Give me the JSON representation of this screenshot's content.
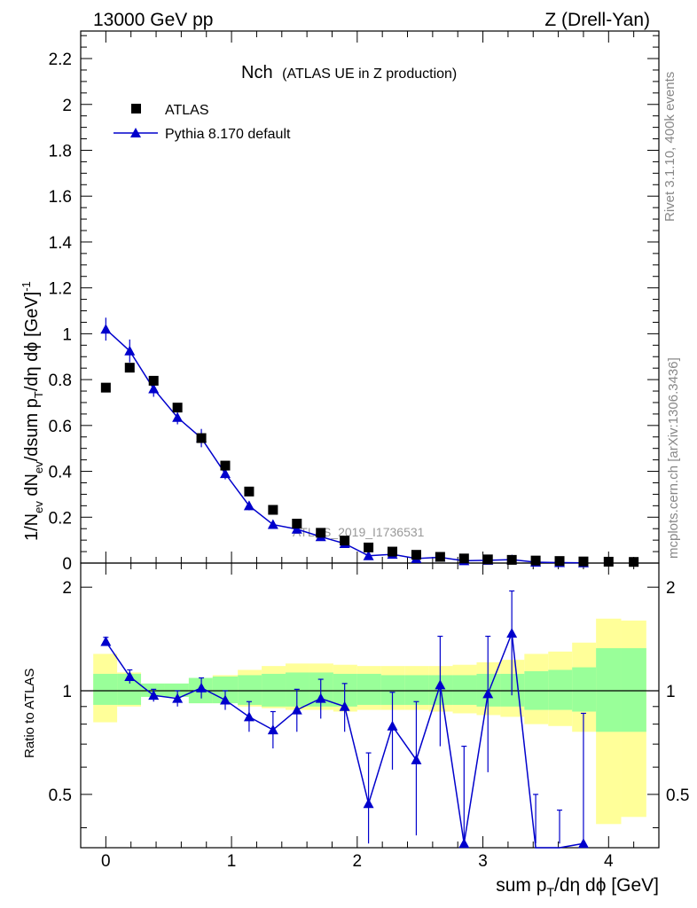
{
  "header": {
    "energy_label": "13000 GeV pp",
    "process_label": "Z (Drell-Yan)"
  },
  "side_labels": {
    "rivet": "Rivet 3.1.10,  400k events",
    "mcplots": "mcplots.cern.ch [arXiv:1306.3436]"
  },
  "chart_data": {
    "type": "scatter",
    "title_main": "Nch",
    "title_sub": "(ATLAS UE in Z production)",
    "watermark": "ATLAS_2019_I1736531",
    "ylabel": {
      "part1": "1/N",
      "sub1": "ev",
      "part2": " dN",
      "sub2": "ev",
      "part3": "/dsum p",
      "sub3": "T",
      "part4": "/dη dϕ  [GeV]",
      "sup": "-1"
    },
    "xlabel": {
      "part1": "sum p",
      "sub": "T",
      "part2": "/dη dϕ [GeV]"
    },
    "ratio_ylabel": "Ratio to ATLAS",
    "xlim": [
      -0.2,
      4.4
    ],
    "ylim_main": [
      0,
      2.32
    ],
    "ylim_ratio": [
      0.35,
      2.35
    ],
    "ratio_scale": "log",
    "x_ticks": [
      0,
      1,
      2,
      3,
      4
    ],
    "x_tick_labels": [
      "0",
      "1",
      "2",
      "3",
      "4"
    ],
    "y_ticks_main": [
      0,
      0.2,
      0.4,
      0.6,
      0.8,
      1,
      1.2,
      1.4,
      1.6,
      1.8,
      2,
      2.2
    ],
    "y_tick_labels_main": [
      "0",
      "0.2",
      "0.4",
      "0.6",
      "0.8",
      "1",
      "1.2",
      "1.4",
      "1.6",
      "1.8",
      "2",
      "2.2"
    ],
    "y_ticks_ratio": [
      0.5,
      1,
      2
    ],
    "y_tick_labels_ratio": [
      "0.5",
      "1",
      "2"
    ],
    "legend_position": "top-left",
    "series": [
      {
        "name": "ATLAS",
        "marker": "square",
        "color": "#000000",
        "x": [
          0,
          0.19,
          0.38,
          0.57,
          0.76,
          0.95,
          1.14,
          1.33,
          1.52,
          1.71,
          1.9,
          2.09,
          2.28,
          2.47,
          2.66,
          2.85,
          3.04,
          3.23,
          3.42,
          3.61,
          3.8,
          4.0,
          4.2
        ],
        "y": [
          0.765,
          0.852,
          0.795,
          0.678,
          0.545,
          0.425,
          0.312,
          0.232,
          0.172,
          0.132,
          0.098,
          0.068,
          0.05,
          0.036,
          0.027,
          0.02,
          0.016,
          0.014,
          0.011,
          0.009,
          0.007,
          0.006,
          0.005
        ]
      },
      {
        "name": "Pythia 8.170 default",
        "marker": "triangle",
        "color": "#0000cc",
        "x": [
          0,
          0.19,
          0.38,
          0.57,
          0.76,
          0.95,
          1.14,
          1.33,
          1.52,
          1.71,
          1.9,
          2.09,
          2.28,
          2.47,
          2.66,
          2.85,
          3.04,
          3.23,
          3.42,
          3.61,
          3.8
        ],
        "y": [
          1.02,
          0.925,
          0.76,
          0.635,
          0.545,
          0.39,
          0.25,
          0.168,
          0.148,
          0.115,
          0.085,
          0.032,
          0.038,
          0.02,
          0.025,
          0.01,
          0.012,
          0.015,
          0.004,
          0.002,
          0.001
        ],
        "err": [
          0.05,
          0.05,
          0.035,
          0.03,
          0.04,
          0.025,
          0.02,
          0.015,
          0.015,
          0.012,
          0.01,
          0.01,
          0.01,
          0.007,
          0.01,
          0.006,
          0.008,
          0.01,
          0.005,
          0.003,
          0.003
        ]
      }
    ],
    "ratio": {
      "band_edges": [
        -0.1,
        0.09,
        0.28,
        0.47,
        0.66,
        0.85,
        1.05,
        1.24,
        1.43,
        1.62,
        1.81,
        2.0,
        2.19,
        2.38,
        2.57,
        2.76,
        2.95,
        3.14,
        3.33,
        3.52,
        3.71,
        3.9,
        4.1,
        4.3
      ],
      "inner_band": [
        [
          0.91,
          1.12
        ],
        [
          0.91,
          1.12
        ],
        [
          0.96,
          1.05
        ],
        [
          0.96,
          1.05
        ],
        [
          0.92,
          1.09
        ],
        [
          0.92,
          1.1
        ],
        [
          0.91,
          1.11
        ],
        [
          0.9,
          1.12
        ],
        [
          0.9,
          1.13
        ],
        [
          0.9,
          1.13
        ],
        [
          0.9,
          1.12
        ],
        [
          0.91,
          1.12
        ],
        [
          0.91,
          1.11
        ],
        [
          0.91,
          1.11
        ],
        [
          0.91,
          1.11
        ],
        [
          0.91,
          1.11
        ],
        [
          0.9,
          1.12
        ],
        [
          0.9,
          1.12
        ],
        [
          0.88,
          1.14
        ],
        [
          0.88,
          1.15
        ],
        [
          0.87,
          1.17
        ],
        [
          0.76,
          1.33
        ],
        [
          0.76,
          1.33
        ]
      ],
      "outer_band": [
        [
          0.81,
          1.28
        ],
        [
          0.9,
          1.13
        ],
        [
          0.97,
          1.04
        ],
        [
          0.97,
          1.04
        ],
        [
          0.92,
          1.09
        ],
        [
          0.92,
          1.11
        ],
        [
          0.9,
          1.15
        ],
        [
          0.89,
          1.18
        ],
        [
          0.88,
          1.2
        ],
        [
          0.88,
          1.2
        ],
        [
          0.87,
          1.19
        ],
        [
          0.88,
          1.18
        ],
        [
          0.88,
          1.18
        ],
        [
          0.88,
          1.18
        ],
        [
          0.87,
          1.18
        ],
        [
          0.86,
          1.19
        ],
        [
          0.85,
          1.21
        ],
        [
          0.84,
          1.23
        ],
        [
          0.8,
          1.28
        ],
        [
          0.79,
          1.3
        ],
        [
          0.76,
          1.38
        ],
        [
          0.41,
          1.62
        ],
        [
          0.43,
          1.6
        ]
      ],
      "inner_color": "#99ff99",
      "outer_color": "#ffff99",
      "points_x": [
        0,
        0.19,
        0.38,
        0.57,
        0.76,
        0.95,
        1.14,
        1.33,
        1.52,
        1.71,
        1.9,
        2.09,
        2.28,
        2.47,
        2.66,
        2.85,
        3.04,
        3.23,
        3.42,
        3.61,
        3.8
      ],
      "points_y": [
        1.39,
        1.1,
        0.97,
        0.95,
        1.02,
        0.94,
        0.84,
        0.77,
        0.88,
        0.95,
        0.9,
        0.47,
        0.79,
        0.63,
        1.04,
        0.36,
        0.98,
        1.47,
        0.3,
        0.25,
        0.36
      ],
      "err_lo": [
        0.04,
        0.05,
        0.04,
        0.05,
        0.07,
        0.06,
        0.08,
        0.09,
        0.12,
        0.12,
        0.14,
        0.2,
        0.2,
        0.25,
        0.35,
        0.3,
        0.4,
        0.5,
        0.2,
        0.2,
        0.3
      ],
      "err_hi": [
        0.04,
        0.05,
        0.04,
        0.05,
        0.07,
        0.06,
        0.09,
        0.1,
        0.13,
        0.13,
        0.15,
        0.19,
        0.2,
        0.3,
        0.4,
        0.33,
        0.46,
        0.48,
        0.2,
        0.2,
        0.5
      ]
    }
  }
}
